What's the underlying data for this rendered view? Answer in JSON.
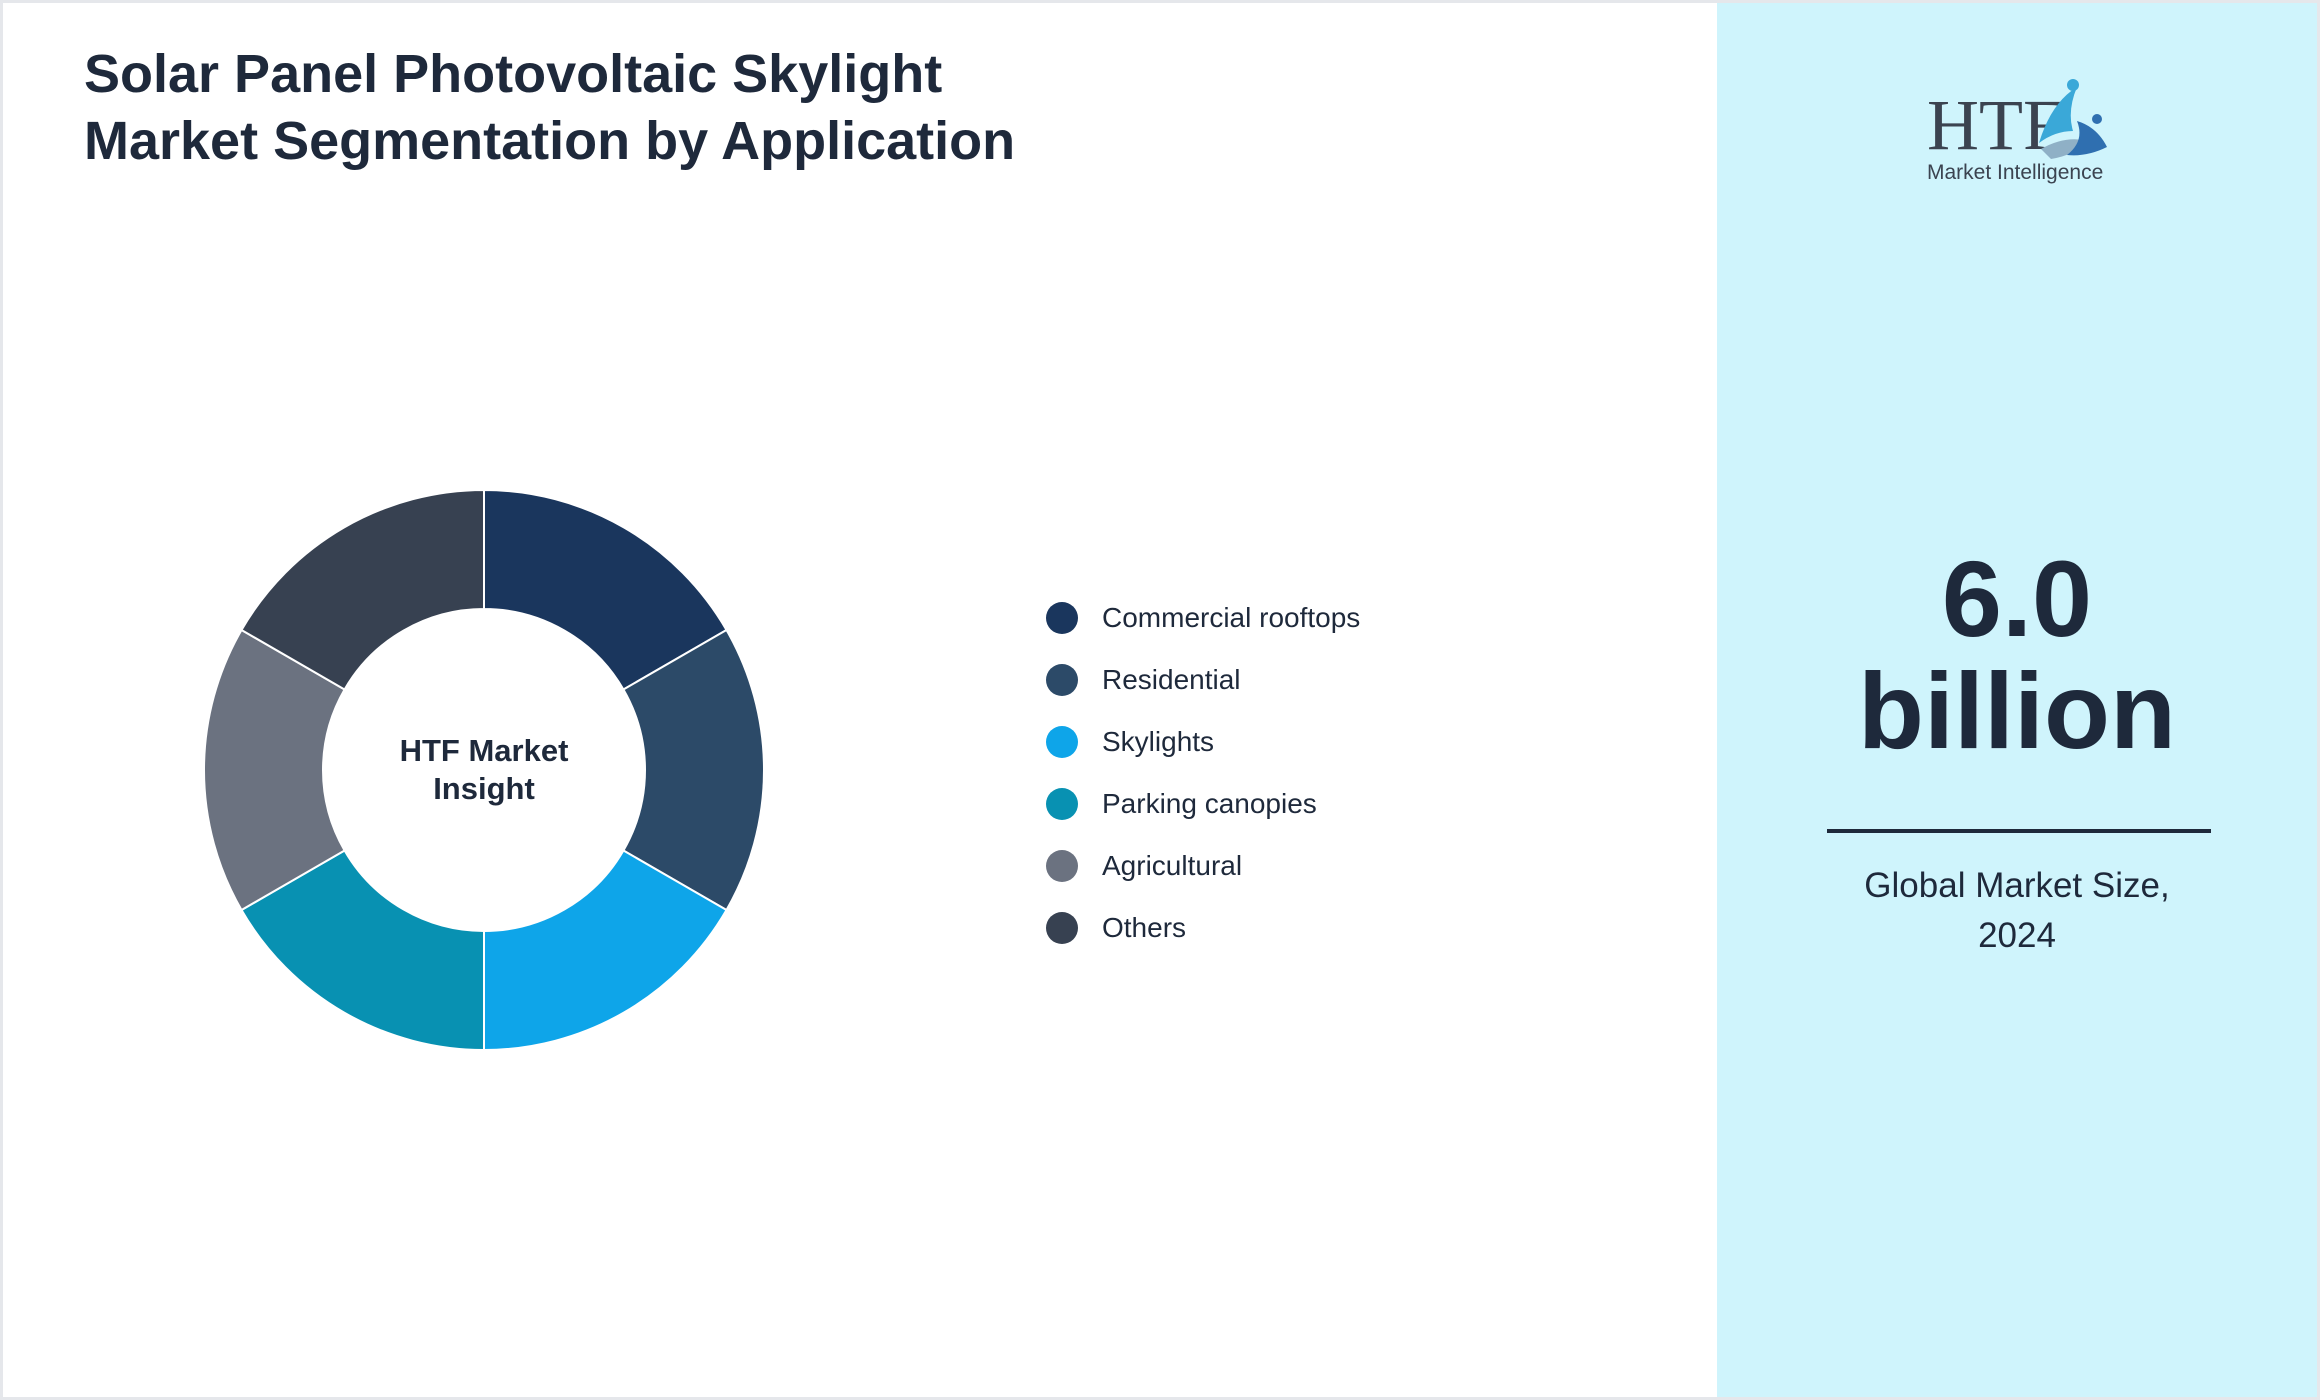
{
  "title": "Solar Panel Photovoltaic Skylight Market Segmentation by Application",
  "chart_data": {
    "type": "pie",
    "title": "Solar Panel Photovoltaic Skylight Market Segmentation by Application",
    "center_label_lines": [
      "HTF Market",
      "Insight"
    ],
    "categories": [
      "Commercial rooftops",
      "Residential",
      "Skylights",
      "Parking canopies",
      "Agricultural",
      "Others"
    ],
    "values": [
      16.67,
      16.67,
      16.67,
      16.67,
      16.67,
      16.67
    ],
    "colors": [
      "#1a365d",
      "#2c4a68",
      "#0ea5e9",
      "#0891b2",
      "#6b7280",
      "#374151"
    ],
    "legend_position": "right"
  },
  "logo": {
    "text": "HTF",
    "subtext": "Market Intelligence",
    "accent_colors": [
      "#3aa8d8",
      "#8fb0c6",
      "#2f6fb0"
    ]
  },
  "market": {
    "value_line1": "6.0",
    "value_line2": "billion",
    "caption_line1": "Global Market Size,",
    "caption_line2": "2024"
  },
  "colors": {
    "title_text": "#1e293b",
    "side_panel_bg": "#cff4fc",
    "page_border": "#e5e7eb"
  }
}
